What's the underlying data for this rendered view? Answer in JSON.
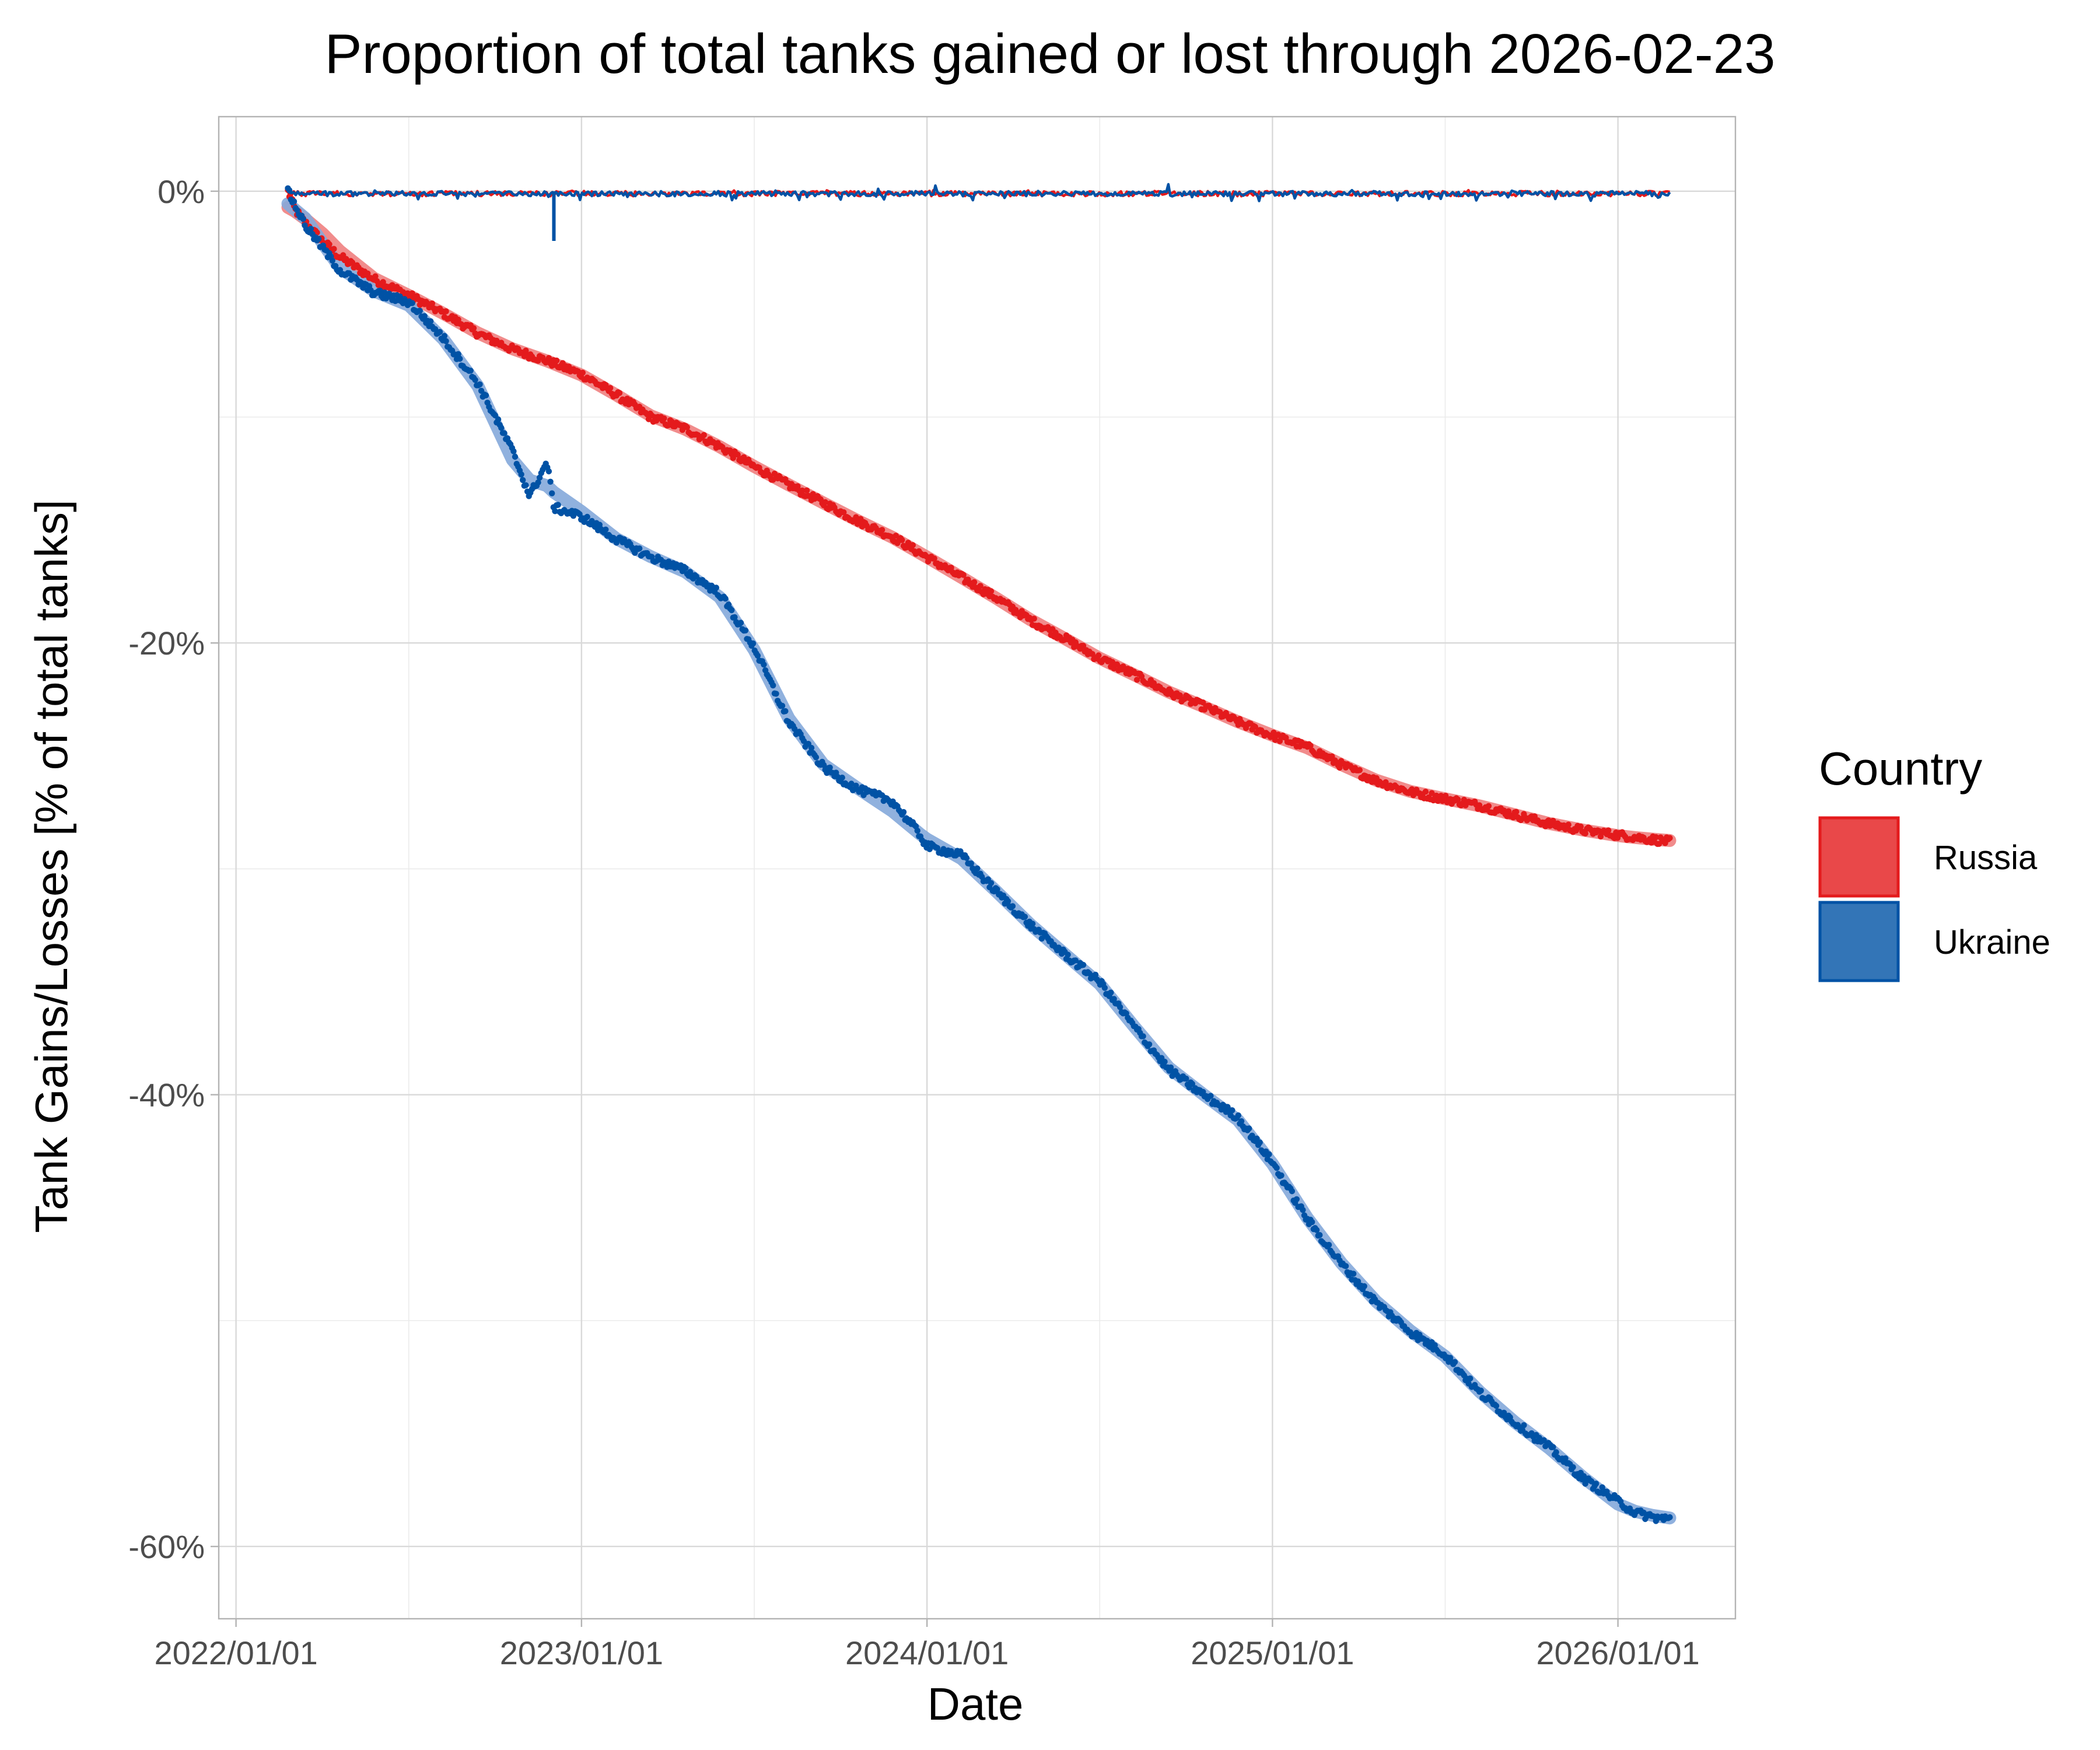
{
  "chart_data": {
    "type": "line",
    "title": "Proportion of total tanks gained or lost through 2026-02-23",
    "xlabel": "Date",
    "ylabel": "Tank Gains/Losses [% of total tanks]",
    "x_tick_labels": [
      "2022/01/01",
      "2023/01/01",
      "2024/01/01",
      "2025/01/01",
      "2026/01/01"
    ],
    "y_tick_labels": [
      "0%",
      "-20%",
      "-40%",
      "-60%"
    ],
    "y_ticks": [
      0,
      -20,
      -40,
      -60
    ],
    "xlim": [
      2021.95,
      2026.34
    ],
    "ylim": [
      -63.2,
      3.3
    ],
    "x_start": 2022.15,
    "x_end": 2026.15,
    "legend": {
      "title": "Country",
      "position": "right"
    },
    "series": [
      {
        "name": "Russia",
        "color": "#e41a1c",
        "smooth_color": "#f08080",
        "cumulative": {
          "x": [
            2022.15,
            2022.17,
            2022.2,
            2022.25,
            2022.3,
            2022.4,
            2022.5,
            2022.6,
            2022.7,
            2022.8,
            2022.9,
            2023.0,
            2023.1,
            2023.2,
            2023.3,
            2023.4,
            2023.5,
            2023.6,
            2023.7,
            2023.8,
            2023.9,
            2024.0,
            2024.1,
            2024.2,
            2024.3,
            2024.4,
            2024.5,
            2024.6,
            2024.7,
            2024.8,
            2024.9,
            2025.0,
            2025.1,
            2025.2,
            2025.3,
            2025.4,
            2025.5,
            2025.6,
            2025.7,
            2025.8,
            2025.9,
            2026.0,
            2026.05,
            2026.1,
            2026.15
          ],
          "y": [
            0,
            -0.8,
            -1.4,
            -2.2,
            -2.9,
            -3.9,
            -4.6,
            -5.4,
            -6.3,
            -7.0,
            -7.5,
            -8.1,
            -9.0,
            -10.0,
            -10.5,
            -11.3,
            -12.2,
            -13.0,
            -13.8,
            -14.6,
            -15.3,
            -16.2,
            -17.1,
            -18.0,
            -19.0,
            -19.8,
            -20.7,
            -21.4,
            -22.2,
            -22.8,
            -23.5,
            -24.1,
            -24.6,
            -25.4,
            -26.1,
            -26.6,
            -26.9,
            -27.2,
            -27.6,
            -28.0,
            -28.3,
            -28.5,
            -28.6,
            -28.7,
            -28.8
          ]
        },
        "daily_change_range": [
          -0.3,
          0.05
        ]
      },
      {
        "name": "Ukraine",
        "color": "#0052a5",
        "smooth_color": "#84a8da",
        "cumulative": {
          "x": [
            2022.15,
            2022.2,
            2022.3,
            2022.4,
            2022.5,
            2022.6,
            2022.7,
            2022.8,
            2022.85,
            2022.9,
            2022.92,
            2023.0,
            2023.1,
            2023.2,
            2023.3,
            2023.4,
            2023.5,
            2023.6,
            2023.7,
            2023.8,
            2023.9,
            2023.98,
            2024.0,
            2024.1,
            2024.2,
            2024.3,
            2024.4,
            2024.5,
            2024.6,
            2024.7,
            2024.8,
            2024.9,
            2025.0,
            2025.1,
            2025.2,
            2025.3,
            2025.4,
            2025.5,
            2025.6,
            2025.7,
            2025.8,
            2025.9,
            2026.0,
            2026.05,
            2026.1,
            2026.15
          ],
          "y": [
            0,
            -1.5,
            -3.5,
            -4.5,
            -4.9,
            -6.5,
            -8.5,
            -11.5,
            -13.5,
            -12.0,
            -14.0,
            -14.4,
            -15.4,
            -16.2,
            -16.8,
            -17.8,
            -20.2,
            -23.5,
            -25.5,
            -26.5,
            -27.0,
            -28.5,
            -29.0,
            -29.4,
            -31.0,
            -32.5,
            -33.8,
            -35.0,
            -37.0,
            -38.9,
            -40.0,
            -41.0,
            -43.0,
            -45.5,
            -47.5,
            -49.2,
            -50.5,
            -51.5,
            -53.2,
            -54.5,
            -55.6,
            -57.0,
            -58.0,
            -58.5,
            -58.7,
            -58.8
          ]
        },
        "daily_change_range": [
          -2.2,
          0.4
        ]
      }
    ]
  }
}
